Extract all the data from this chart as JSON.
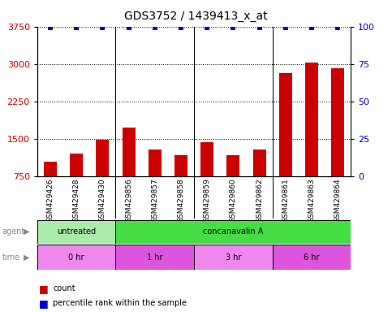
{
  "title": "GDS3752 / 1439413_x_at",
  "samples": [
    "GSM429426",
    "GSM429428",
    "GSM429430",
    "GSM429856",
    "GSM429857",
    "GSM429858",
    "GSM429859",
    "GSM429860",
    "GSM429862",
    "GSM429861",
    "GSM429863",
    "GSM429864"
  ],
  "counts": [
    1050,
    1200,
    1480,
    1720,
    1280,
    1170,
    1430,
    1180,
    1290,
    2820,
    3020,
    2920
  ],
  "percentile_ranks": [
    99,
    99,
    99,
    99,
    99,
    99,
    99,
    99,
    99,
    99,
    99,
    99
  ],
  "ylim_left": [
    750,
    3750
  ],
  "ylim_right": [
    0,
    100
  ],
  "yticks_left": [
    750,
    1500,
    2250,
    3000,
    3750
  ],
  "yticks_right": [
    0,
    25,
    50,
    75,
    100
  ],
  "bar_color": "#cc0000",
  "dot_color": "#0000cc",
  "agent_groups": [
    {
      "label": "untreated",
      "start": 0,
      "end": 3,
      "color": "#aaeaaa"
    },
    {
      "label": "concanavalin A",
      "start": 3,
      "end": 12,
      "color": "#44dd44"
    }
  ],
  "time_groups": [
    {
      "label": "0 hr",
      "start": 0,
      "end": 3,
      "color": "#ee88ee"
    },
    {
      "label": "1 hr",
      "start": 3,
      "end": 6,
      "color": "#dd55dd"
    },
    {
      "label": "3 hr",
      "start": 6,
      "end": 9,
      "color": "#ee88ee"
    },
    {
      "label": "6 hr",
      "start": 9,
      "end": 12,
      "color": "#dd55dd"
    }
  ],
  "group_boundaries": [
    3,
    6,
    9
  ],
  "bg_color": "#ffffff",
  "tick_label_color_left": "#cc0000",
  "tick_label_color_right": "#0000cc",
  "bar_width": 0.5,
  "sample_bg_color": "#cccccc",
  "title_fontsize": 10,
  "axis_fontsize": 8,
  "label_fontsize": 7,
  "sample_fontsize": 6.5
}
